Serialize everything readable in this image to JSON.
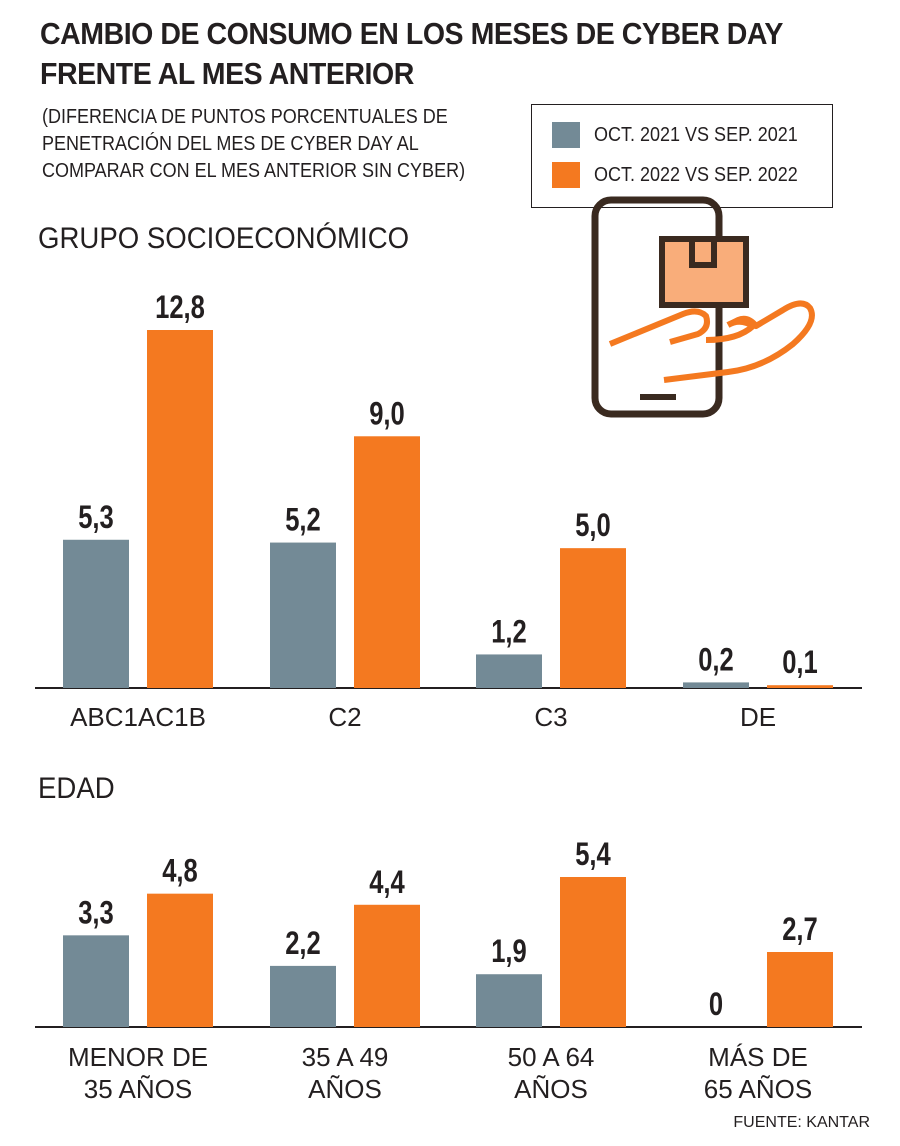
{
  "header": {
    "title": "CAMBIO DE CONSUMO EN LOS MESES DE CYBER DAY FRENTE AL MES ANTERIOR",
    "subtitle": "(DIFERENCIA DE PUNTOS PORCENTUALES DE PENETRACIÓN DEL MES DE CYBER DAY AL COMPARAR CON EL MES ANTERIOR SIN CYBER)"
  },
  "legend": {
    "items": [
      {
        "label": "OCT. 2021 VS SEP. 2021",
        "color": "#738a96"
      },
      {
        "label": "OCT. 2022 VS SEP. 2022",
        "color": "#f47920"
      }
    ]
  },
  "icons": {
    "illustration": "phone-hand-package-icon"
  },
  "source": "FUENTE: KANTAR",
  "chart_data": [
    {
      "type": "bar",
      "title": "GRUPO SOCIOECONÓMICO",
      "categories": [
        "ABC1AC1B",
        "C2",
        "C3",
        "DE"
      ],
      "series": [
        {
          "name": "OCT. 2021 VS SEP. 2021",
          "values": [
            5.3,
            5.2,
            1.2,
            0.2
          ],
          "labels": [
            "5,3",
            "5,2",
            "1,2",
            "0,2"
          ],
          "color": "#738a96"
        },
        {
          "name": "OCT. 2022 VS SEP. 2022",
          "values": [
            12.8,
            9.0,
            5.0,
            0.1
          ],
          "labels": [
            "12,8",
            "9,0",
            "5,0",
            "0,1"
          ],
          "color": "#f47920"
        }
      ],
      "ylim": [
        0,
        12.8
      ],
      "legend": "top-right",
      "grid": false
    },
    {
      "type": "bar",
      "title": "EDAD",
      "categories": [
        "MENOR DE\n35 AÑOS",
        "35 A 49\nAÑOS",
        "50 A 64\nAÑOS",
        "MÁS DE\n65 AÑOS"
      ],
      "series": [
        {
          "name": "OCT. 2021 VS SEP. 2021",
          "values": [
            3.3,
            2.2,
            1.9,
            0
          ],
          "labels": [
            "3,3",
            "2,2",
            "1,9",
            "0"
          ],
          "color": "#738a96"
        },
        {
          "name": "OCT. 2022 VS SEP. 2022",
          "values": [
            4.8,
            4.4,
            5.4,
            2.7
          ],
          "labels": [
            "4,8",
            "4,4",
            "5,4",
            "2,7"
          ],
          "color": "#f47920"
        }
      ],
      "ylim": [
        0,
        5.4
      ],
      "legend": "top-right",
      "grid": false
    }
  ]
}
